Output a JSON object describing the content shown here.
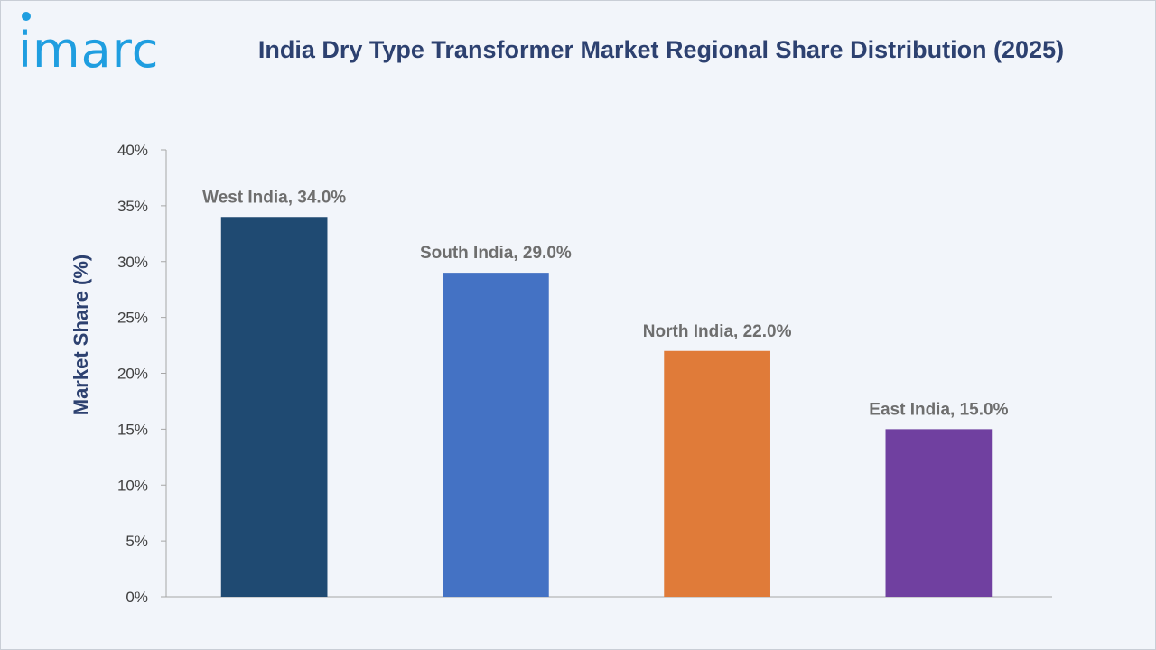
{
  "brand": {
    "logo_text": "imarc",
    "logo_color": "#1f9ee0"
  },
  "chart_data": {
    "type": "bar",
    "title": "India Dry Type Transformer Market Regional Share Distribution (2025)",
    "xlabel": "",
    "ylabel": "Market Share (%)",
    "ylim": [
      0,
      40
    ],
    "yticks": [
      0,
      5,
      10,
      15,
      20,
      25,
      30,
      35,
      40
    ],
    "ytick_labels": [
      "0%",
      "5%",
      "10%",
      "15%",
      "20%",
      "25%",
      "30%",
      "35%",
      "40%"
    ],
    "categories": [
      "West India",
      "South India",
      "North India",
      "East India"
    ],
    "values": [
      34.0,
      29.0,
      22.0,
      15.0
    ],
    "data_labels": [
      "West India, 34.0%",
      "South India, 29.0%",
      "North India, 22.0%",
      "East India, 15.0%"
    ],
    "colors": [
      "#1f4a72",
      "#4472c4",
      "#e07b39",
      "#7040a0"
    ],
    "grid": false,
    "legend": "none"
  }
}
